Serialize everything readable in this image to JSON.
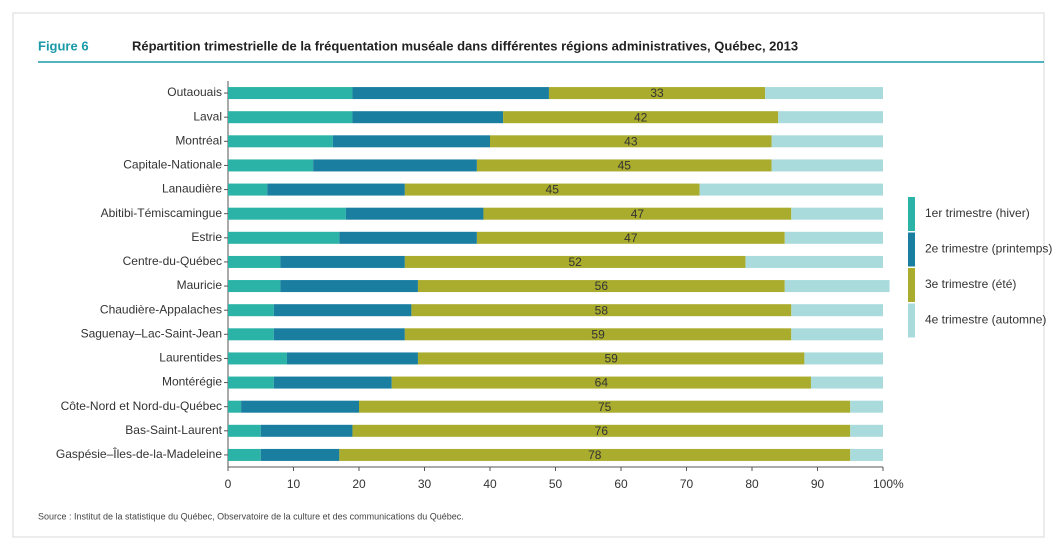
{
  "chart_data": {
    "type": "stacked_barh",
    "figure_label": "Figure 6",
    "title": "Répartition trimestrielle de la fréquentation muséale dans différentes régions administratives, Québec, 2013",
    "source": "Source : Institut de la statistique du Québec, Observatoire de la culture et des communications du Québec.",
    "xlabel": "%",
    "categories": [
      "Outaouais",
      "Laval",
      "Montréal",
      "Capitale-Nationale",
      "Lanaudière",
      "Abitibi-Témiscamingue",
      "Estrie",
      "Centre-du-Québec",
      "Mauricie",
      "Chaudière-Appalaches",
      "Saguenay–Lac-Saint-Jean",
      "Laurentides",
      "Montérégie",
      "Côte-Nord et Nord-du-Québec",
      "Bas-Saint-Laurent",
      "Gaspésie–Îles-de-la-Madeleine"
    ],
    "series": [
      {
        "name": "1er trimestre (hiver)",
        "color": "#2ab3a6",
        "values": [
          19,
          19,
          16,
          13,
          6,
          18,
          17,
          8,
          8,
          7,
          7,
          9,
          7,
          2,
          5,
          5
        ]
      },
      {
        "name": "2e trimestre (printemps)",
        "color": "#1a7ea0",
        "values": [
          30,
          23,
          24,
          25,
          21,
          21,
          21,
          19,
          21,
          21,
          20,
          20,
          18,
          18,
          14,
          12
        ]
      },
      {
        "name": "3e trimestre (été)",
        "color": "#a9ac2d",
        "values": [
          33,
          42,
          43,
          45,
          45,
          47,
          47,
          52,
          56,
          58,
          59,
          59,
          64,
          75,
          76,
          78
        ]
      },
      {
        "name": "4e trimestre (automne)",
        "color": "#a9dbdc",
        "values": [
          18,
          16,
          17,
          17,
          28,
          14,
          15,
          21,
          16,
          14,
          14,
          12,
          11,
          5,
          5,
          5
        ]
      }
    ],
    "labeled_series": 2,
    "xlim": [
      0,
      100
    ],
    "xticks": [
      0,
      10,
      20,
      30,
      40,
      50,
      60,
      70,
      80,
      90,
      100
    ]
  }
}
